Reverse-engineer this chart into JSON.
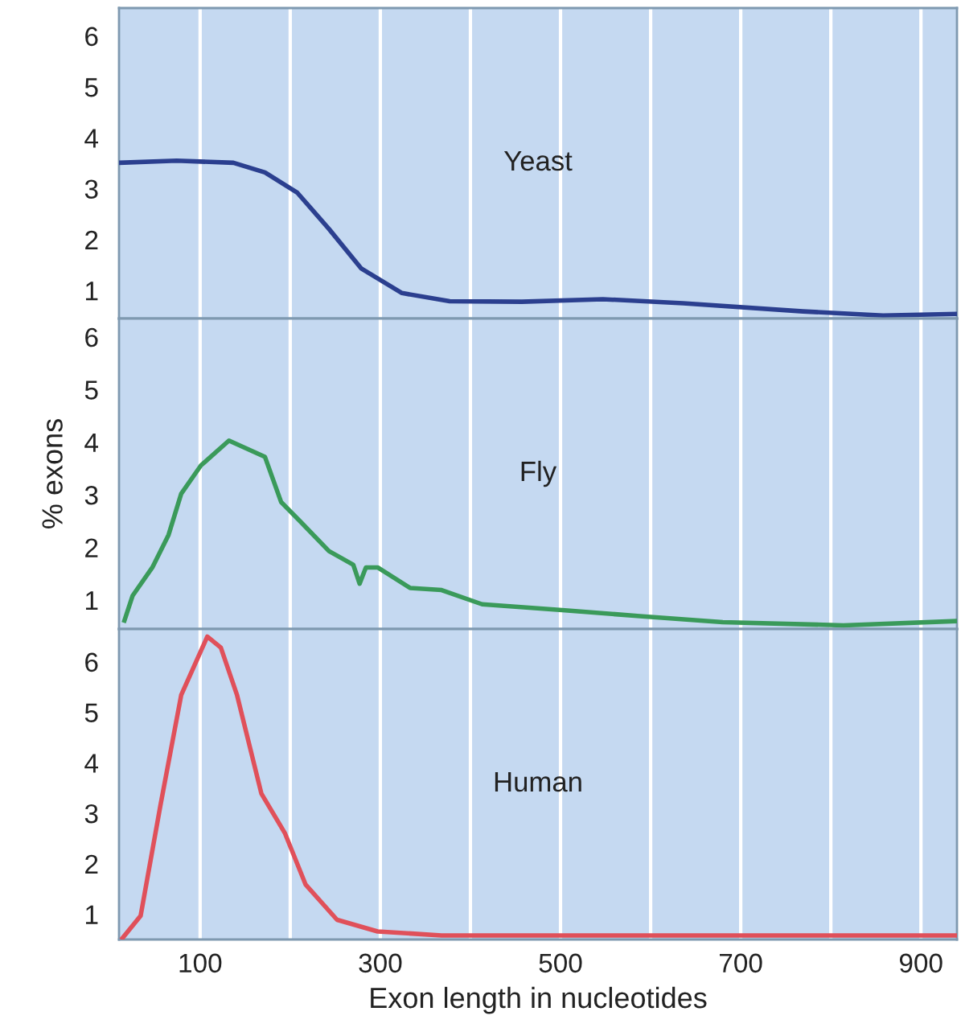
{
  "chart_data": [
    {
      "type": "line",
      "xlim": [
        10,
        940
      ],
      "ylim": [
        0.45,
        6.55
      ],
      "yticks": [
        1,
        2,
        3,
        4,
        5,
        6
      ],
      "xticks": [
        {
          "value": 100,
          "label": null
        },
        {
          "value": 200,
          "label": null
        },
        {
          "value": 300,
          "label": null
        },
        {
          "value": 400,
          "label": null
        },
        {
          "value": 500,
          "label": null
        },
        {
          "value": 600,
          "label": null
        },
        {
          "value": 700,
          "label": null
        },
        {
          "value": 800,
          "label": null
        },
        {
          "value": 900,
          "label": null
        }
      ],
      "tick_labels": "y",
      "grid": "x",
      "legend": false,
      "series": [
        {
          "name": "Yeast",
          "color": "#2b3f8f",
          "x": [
            10,
            74,
            137,
            172,
            208,
            243,
            279,
            324,
            377,
            457,
            547,
            636,
            769,
            858,
            939
          ],
          "values": [
            3.51,
            3.55,
            3.51,
            3.32,
            2.92,
            2.21,
            1.43,
            0.95,
            0.79,
            0.78,
            0.83,
            0.75,
            0.59,
            0.51,
            0.54
          ]
        }
      ]
    },
    {
      "type": "line",
      "ylabel": "% exons",
      "xlim": [
        10,
        940
      ],
      "ylim": [
        0.45,
        6.35
      ],
      "yticks": [
        1,
        2,
        3,
        4,
        5,
        6
      ],
      "xticks": [
        {
          "value": 100,
          "label": null
        },
        {
          "value": 200,
          "label": null
        },
        {
          "value": 300,
          "label": null
        },
        {
          "value": 400,
          "label": null
        },
        {
          "value": 500,
          "label": null
        },
        {
          "value": 600,
          "label": null
        },
        {
          "value": 700,
          "label": null
        },
        {
          "value": 800,
          "label": null
        },
        {
          "value": 900,
          "label": null
        }
      ],
      "tick_labels": "y",
      "grid": "x",
      "legend": false,
      "series": [
        {
          "name": "Fly",
          "color": "#3a9a5a",
          "x": [
            16,
            25,
            47,
            65,
            79,
            101,
            132,
            172,
            190,
            212,
            243,
            270,
            277,
            284,
            297,
            333,
            368,
            413,
            502,
            591,
            680,
            814,
            939
          ],
          "values": [
            0.61,
            1.08,
            1.62,
            2.24,
            3.02,
            3.56,
            4.03,
            3.72,
            2.86,
            2.48,
            1.93,
            1.67,
            1.31,
            1.62,
            1.62,
            1.23,
            1.19,
            0.92,
            0.81,
            0.69,
            0.58,
            0.52,
            0.6
          ]
        }
      ]
    },
    {
      "type": "line",
      "xlabel": "Exon length in nucleotides",
      "xlim": [
        10,
        940
      ],
      "ylim": [
        0.5,
        6.65
      ],
      "yticks": [
        1,
        2,
        3,
        4,
        5,
        6
      ],
      "xticks": [
        100,
        {
          "value": 200,
          "label": null
        },
        300,
        {
          "value": 400,
          "label": null
        },
        500,
        {
          "value": 600,
          "label": null
        },
        700,
        {
          "value": 800,
          "label": null
        },
        900
      ],
      "grid": "x",
      "legend": false,
      "series": [
        {
          "name": "Human",
          "color": "#e0505a",
          "x": [
            14,
            34,
            56,
            79,
            108,
            123,
            141,
            168,
            194,
            217,
            252,
            297,
            368,
            502,
            939
          ],
          "values": [
            0.53,
            0.97,
            3.16,
            5.34,
            6.5,
            6.28,
            5.34,
            3.39,
            2.61,
            1.59,
            0.89,
            0.66,
            0.58,
            0.58,
            0.58
          ]
        }
      ]
    }
  ]
}
